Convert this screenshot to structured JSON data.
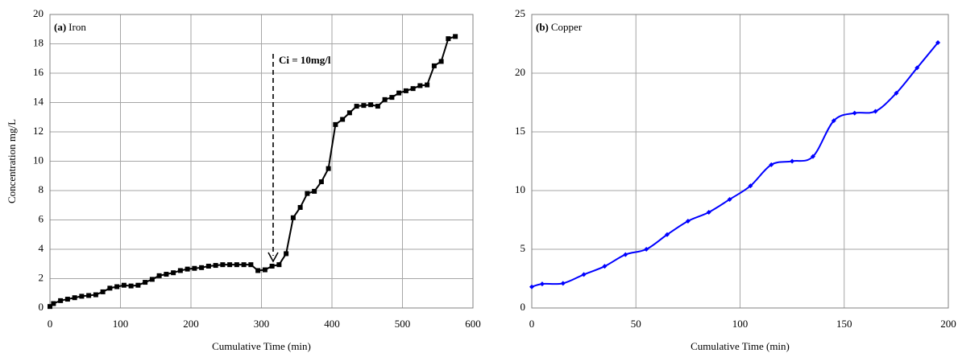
{
  "chart_data": [
    {
      "type": "line",
      "panel_label": "(a)",
      "title": "Iron",
      "x_label": "Cumulative Time (min)",
      "y_label": "Concentration mg/L",
      "annotation": "Ci = 10mg/l",
      "grid": true,
      "marker": "square",
      "xlim": [
        0,
        600
      ],
      "xticks": [
        0,
        100,
        200,
        300,
        400,
        500,
        600
      ],
      "ylim": [
        0,
        20
      ],
      "yticks": [
        0,
        2,
        4,
        6,
        8,
        10,
        12,
        14,
        16,
        18,
        20
      ],
      "x": [
        0,
        5,
        15,
        25,
        35,
        45,
        55,
        65,
        75,
        85,
        95,
        105,
        115,
        125,
        135,
        145,
        155,
        165,
        175,
        185,
        195,
        205,
        215,
        225,
        235,
        245,
        255,
        265,
        275,
        285,
        295,
        305,
        315,
        325,
        335,
        345,
        355,
        365,
        375,
        385,
        395,
        405,
        415,
        425,
        435,
        445,
        455,
        465,
        475,
        485,
        495,
        505,
        515,
        525,
        535,
        545,
        555,
        565,
        575
      ],
      "series": [
        {
          "name": "Iron",
          "color": "#000000",
          "values": [
            0.1,
            0.3,
            0.5,
            0.6,
            0.7,
            0.8,
            0.85,
            0.9,
            1.1,
            1.35,
            1.45,
            1.55,
            1.5,
            1.55,
            1.75,
            1.95,
            2.2,
            2.3,
            2.4,
            2.55,
            2.65,
            2.7,
            2.75,
            2.85,
            2.9,
            2.95,
            2.95,
            2.95,
            2.95,
            2.95,
            2.55,
            2.6,
            2.85,
            2.95,
            3.7,
            6.15,
            6.85,
            7.8,
            7.95,
            8.6,
            9.5,
            12.5,
            12.85,
            13.3,
            13.75,
            13.8,
            13.85,
            13.75,
            14.2,
            14.35,
            14.65,
            14.8,
            14.95,
            15.15,
            15.2,
            16.5,
            16.8,
            18.35,
            18.5
          ]
        }
      ]
    },
    {
      "type": "line",
      "panel_label": "(b)",
      "title": "Copper",
      "x_label": "Cumulative Time (min)",
      "grid": true,
      "marker": "diamond",
      "smooth": true,
      "xlim": [
        0,
        200
      ],
      "xticks": [
        0,
        50,
        100,
        150,
        200
      ],
      "ylim": [
        0,
        25
      ],
      "yticks": [
        0,
        5,
        10,
        15,
        20,
        25
      ],
      "x": [
        0,
        5,
        15,
        25,
        35,
        45,
        55,
        65,
        75,
        85,
        95,
        105,
        115,
        125,
        135,
        145,
        155,
        165,
        175,
        185,
        195
      ],
      "series": [
        {
          "name": "Copper",
          "color": "#0000ff",
          "values": [
            1.8,
            2.05,
            2.1,
            2.85,
            3.55,
            4.55,
            5.0,
            6.25,
            7.4,
            8.15,
            9.25,
            10.4,
            12.2,
            12.5,
            12.9,
            15.95,
            16.6,
            16.75,
            18.3,
            20.45,
            22.6
          ]
        }
      ]
    }
  ]
}
